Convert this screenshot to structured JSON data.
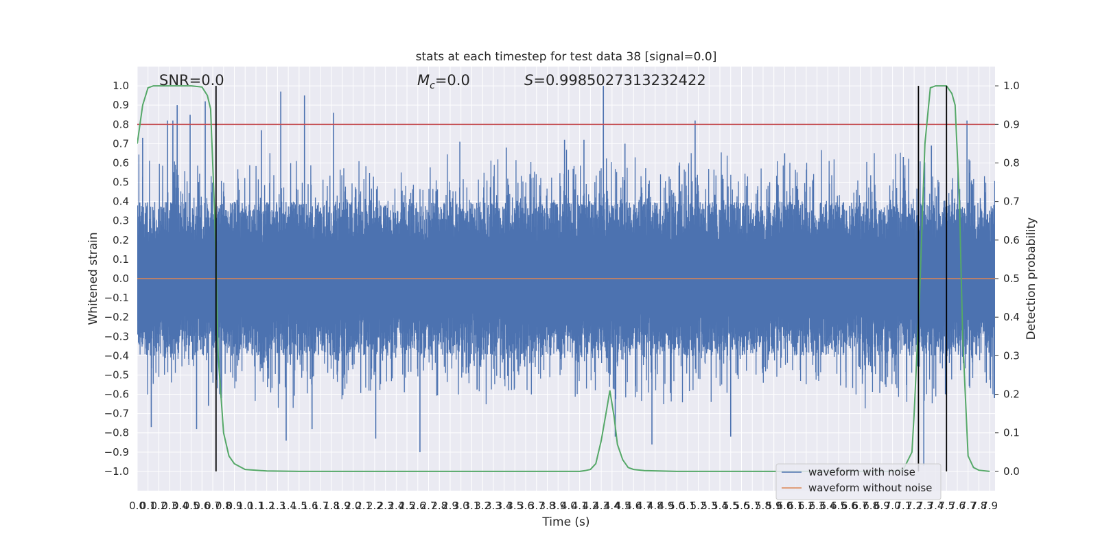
{
  "chart_data": {
    "type": "line",
    "title": "stats at each timestep for test data 38 [signal=0.0]",
    "xlabel": "Time (s)",
    "ylabel": "Whitened strain",
    "y2label": "Detection probability",
    "xlim": [
      0.0,
      7.95
    ],
    "ylim": [
      -1.1,
      1.1
    ],
    "y2lim": [
      -0.05,
      1.05
    ],
    "x_ticks": [
      "0.0",
      "0.1",
      "0.2",
      "0.3",
      "0.4",
      "0.5",
      "0.6",
      "0.7",
      "0.8",
      "0.9",
      "1.0",
      "1.1",
      "1.2",
      "1.3",
      "1.4",
      "1.5",
      "1.6",
      "1.7",
      "1.8",
      "1.9",
      "2.0",
      "2.1",
      "2.2",
      "2.3",
      "2.4",
      "2.5",
      "2.6",
      "2.7",
      "2.8",
      "2.9",
      "3.0",
      "3.1",
      "3.2",
      "3.3",
      "3.4",
      "3.5",
      "3.6",
      "3.7",
      "3.8",
      "3.9",
      "4.0",
      "4.1",
      "4.2",
      "4.3",
      "4.4",
      "4.5",
      "4.6",
      "4.7",
      "4.8",
      "4.9",
      "5.0",
      "5.1",
      "5.2",
      "5.3",
      "5.4",
      "5.5",
      "5.6",
      "5.7",
      "5.8",
      "5.9",
      "6.0",
      "6.1",
      "6.2",
      "6.3",
      "6.4",
      "6.5",
      "6.6",
      "6.7",
      "6.8",
      "6.9",
      "7.0",
      "7.1",
      "7.2",
      "7.3",
      "7.4",
      "7.5",
      "7.6",
      "7.7",
      "7.8",
      "7.9"
    ],
    "y_ticks": [
      "1.0",
      "0.9",
      "0.8",
      "0.7",
      "0.6",
      "0.5",
      "0.4",
      "0.3",
      "0.2",
      "0.1",
      "0.0",
      "−0.1",
      "−0.2",
      "−0.3",
      "−0.4",
      "−0.5",
      "−0.6",
      "−0.7",
      "−0.8",
      "−0.9",
      "−1.0"
    ],
    "y2_ticks": [
      "1.0",
      "0.9",
      "0.8",
      "0.7",
      "0.6",
      "0.5",
      "0.4",
      "0.3",
      "0.2",
      "0.1",
      "0.0"
    ],
    "annotations": {
      "snr": "SNR=0.0",
      "mc_symbol": "M",
      "mc_sub": "c",
      "mc_value": "=0.0",
      "s_symbol": "S",
      "s_value": "=0.9985027313232422"
    },
    "series": [
      {
        "name": "waveform with noise",
        "color": "#4c72b0",
        "note_style": "dense noise band",
        "typical_range": [
          -0.4,
          0.4
        ],
        "spikes": [
          [
            0.05,
            0.73
          ],
          [
            0.13,
            -0.77
          ],
          [
            0.28,
            0.82
          ],
          [
            0.33,
            0.82
          ],
          [
            0.37,
            0.9
          ],
          [
            0.49,
            0.85
          ],
          [
            0.55,
            -0.78
          ],
          [
            0.63,
            0.92
          ],
          [
            0.66,
            -0.66
          ],
          [
            1.15,
            0.77
          ],
          [
            1.33,
            0.97
          ],
          [
            1.38,
            -0.84
          ],
          [
            1.55,
            0.95
          ],
          [
            1.62,
            -0.78
          ],
          [
            1.82,
            0.86
          ],
          [
            2.21,
            -0.83
          ],
          [
            2.62,
            -0.9
          ],
          [
            2.99,
            0.71
          ],
          [
            3.42,
            0.68
          ],
          [
            3.96,
            0.72
          ],
          [
            4.14,
            0.72
          ],
          [
            4.32,
            1.0
          ],
          [
            4.43,
            -0.82
          ],
          [
            4.52,
            0.7
          ],
          [
            4.77,
            -0.86
          ],
          [
            5.17,
            0.82
          ],
          [
            5.5,
            -0.82
          ],
          [
            6.0,
            0.65
          ],
          [
            7.1,
            0.63
          ],
          [
            7.29,
            -0.97
          ],
          [
            7.36,
            0.69
          ],
          [
            7.49,
            -0.6
          ],
          [
            7.69,
            0.82
          ]
        ]
      },
      {
        "name": "waveform without noise",
        "color": "#dd8452",
        "x": [
          0.0,
          7.95
        ],
        "y": [
          0.0,
          0.0
        ]
      },
      {
        "name": "detection probability",
        "color": "#55a868",
        "axis": "right",
        "x": [
          0.0,
          0.05,
          0.1,
          0.15,
          0.2,
          0.3,
          0.4,
          0.5,
          0.6,
          0.65,
          0.68,
          0.72,
          0.75,
          0.8,
          0.85,
          0.9,
          1.0,
          1.2,
          1.5,
          2.0,
          3.0,
          3.8,
          4.1,
          4.15,
          4.2,
          4.25,
          4.3,
          4.35,
          4.38,
          4.42,
          4.45,
          4.5,
          4.55,
          4.6,
          4.7,
          5.0,
          6.0,
          7.0,
          7.1,
          7.18,
          7.2,
          7.25,
          7.3,
          7.35,
          7.4,
          7.45,
          7.5,
          7.55,
          7.58,
          7.62,
          7.65,
          7.7,
          7.75,
          7.8,
          7.9
        ],
        "y": [
          0.85,
          0.95,
          0.995,
          1.0,
          1.0,
          1.0,
          1.0,
          1.0,
          0.997,
          0.975,
          0.94,
          0.65,
          0.3,
          0.1,
          0.04,
          0.02,
          0.005,
          0.001,
          0.0,
          0.0,
          0.0,
          0.0,
          0.0,
          0.002,
          0.005,
          0.02,
          0.08,
          0.16,
          0.21,
          0.14,
          0.07,
          0.03,
          0.01,
          0.005,
          0.002,
          0.0,
          0.0,
          0.0,
          0.005,
          0.05,
          0.15,
          0.45,
          0.85,
          0.995,
          1.0,
          1.0,
          1.0,
          0.98,
          0.95,
          0.7,
          0.35,
          0.04,
          0.01,
          0.003,
          0.0
        ]
      },
      {
        "name": "threshold",
        "color": "#c44e52",
        "axis": "right",
        "x": [
          0.0,
          7.95
        ],
        "y": [
          0.9,
          0.9
        ]
      }
    ],
    "vertical_lines": {
      "color": "#000000",
      "x": [
        0.73,
        7.24,
        7.5
      ],
      "ymin": -1.0,
      "ymax": 1.0
    },
    "background": "#eaeaf2",
    "grid": true,
    "legend": {
      "placement": "lower right",
      "entries": [
        "waveform with noise",
        "waveform without noise"
      ]
    }
  }
}
